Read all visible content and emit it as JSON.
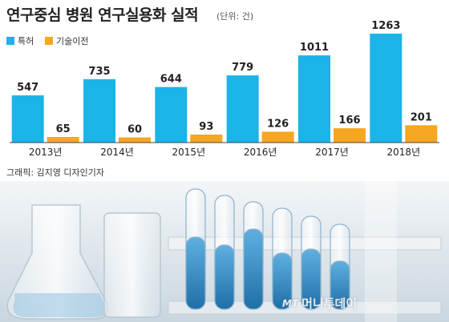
{
  "header": {
    "title": "연구중심 병원 연구실용화 실적",
    "unit": "(단위: 건)"
  },
  "legend": [
    {
      "label": "특허",
      "color": "#1ab4e8"
    },
    {
      "label": "기술이전",
      "color": "#f5a623"
    }
  ],
  "chart_data": {
    "type": "bar",
    "categories": [
      "2013년",
      "2014년",
      "2015년",
      "2016년",
      "2017년",
      "2018년"
    ],
    "series": [
      {
        "name": "특허",
        "values": [
          547,
          735,
          644,
          779,
          1011,
          1263
        ],
        "color": "#1ab4e8"
      },
      {
        "name": "기술이전",
        "values": [
          65,
          60,
          93,
          126,
          166,
          201
        ],
        "color": "#f5a623"
      }
    ],
    "ylim": [
      0,
      1300
    ]
  },
  "credit": "그래픽: 김지영 디자인기자",
  "watermark": {
    "logo": "MT",
    "text": "머니투데이"
  }
}
